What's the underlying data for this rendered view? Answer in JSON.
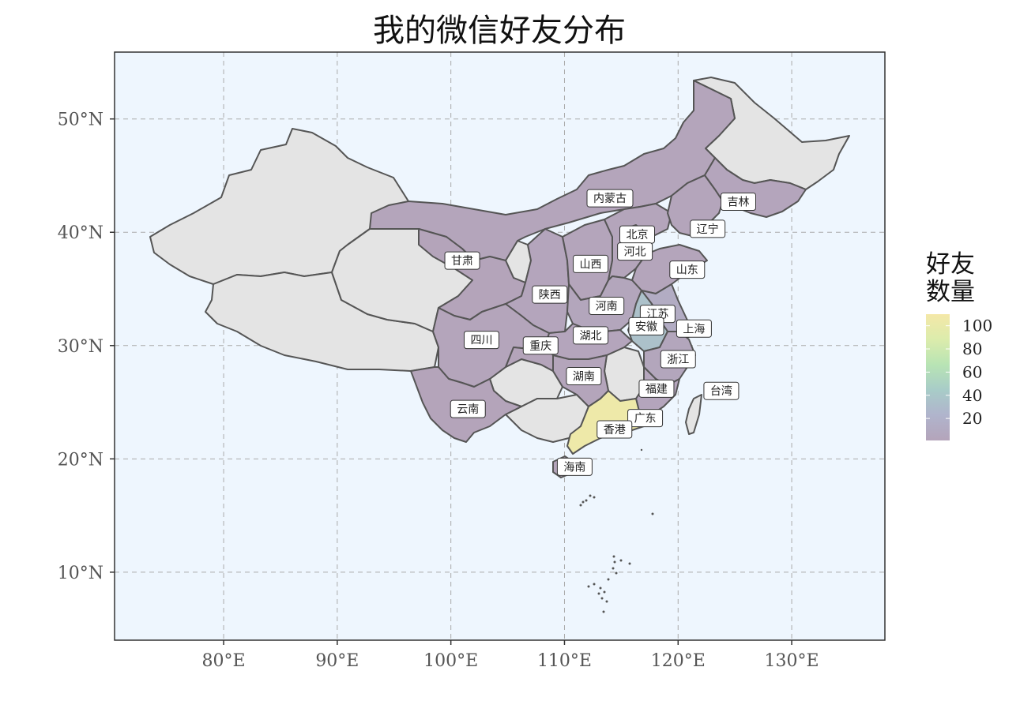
{
  "title": "我的微信好友分布",
  "map": {
    "x_axis": {
      "ticks": [
        80,
        90,
        100,
        110,
        120,
        130
      ],
      "labels": [
        "80°E",
        "90°E",
        "100°E",
        "110°E",
        "120°E",
        "130°E"
      ],
      "range": [
        70.4,
        138.2
      ]
    },
    "y_axis": {
      "ticks": [
        10,
        20,
        30,
        40,
        50
      ],
      "labels": [
        "10°N",
        "20°N",
        "30°N",
        "40°N",
        "50°N"
      ],
      "range": [
        4,
        55.9
      ]
    },
    "colors": {
      "panel_bg": "#eef6fe",
      "no_data": "#e4e4e4",
      "border": "#555555",
      "grid": "#aaaaaa"
    },
    "provinces": [
      {
        "name": "内蒙古",
        "lon": 114.0,
        "lat": 43.0,
        "count": 2
      },
      {
        "name": "吉林",
        "lon": 125.3,
        "lat": 42.7,
        "count": 3
      },
      {
        "name": "辽宁",
        "lon": 122.6,
        "lat": 40.3,
        "count": 2
      },
      {
        "name": "北京",
        "lon": 116.4,
        "lat": 39.8,
        "count": 3
      },
      {
        "name": "河北",
        "lon": 116.2,
        "lat": 38.3,
        "count": 2
      },
      {
        "name": "甘肃",
        "lon": 101.0,
        "lat": 37.5,
        "count": 1
      },
      {
        "name": "山西",
        "lon": 112.3,
        "lat": 37.2,
        "count": 2
      },
      {
        "name": "山东",
        "lon": 120.8,
        "lat": 36.7,
        "count": 2
      },
      {
        "name": "陕西",
        "lon": 108.7,
        "lat": 34.5,
        "count": 3
      },
      {
        "name": "河南",
        "lon": 113.7,
        "lat": 33.5,
        "count": 4
      },
      {
        "name": "江苏",
        "lon": 118.2,
        "lat": 32.8,
        "count": 12
      },
      {
        "name": "安徽",
        "lon": 117.2,
        "lat": 31.7,
        "count": 35
      },
      {
        "name": "上海",
        "lon": 121.4,
        "lat": 31.5,
        "count": 6
      },
      {
        "name": "湖北",
        "lon": 112.3,
        "lat": 30.9,
        "count": 3
      },
      {
        "name": "四川",
        "lon": 102.7,
        "lat": 30.5,
        "count": 2
      },
      {
        "name": "重庆",
        "lon": 107.9,
        "lat": 30.0,
        "count": 1
      },
      {
        "name": "浙江",
        "lon": 120.0,
        "lat": 28.8,
        "count": 4
      },
      {
        "name": "湖南",
        "lon": 111.7,
        "lat": 27.3,
        "count": 2
      },
      {
        "name": "福建",
        "lon": 118.1,
        "lat": 26.2,
        "count": 3
      },
      {
        "name": "台湾",
        "lon": 123.8,
        "lat": 26.0,
        "count": null
      },
      {
        "name": "云南",
        "lon": 101.5,
        "lat": 24.4,
        "count": 1
      },
      {
        "name": "广东",
        "lon": 117.1,
        "lat": 23.6,
        "count": 105
      },
      {
        "name": "香港",
        "lon": 114.4,
        "lat": 22.6,
        "count": 1
      },
      {
        "name": "海南",
        "lon": 110.9,
        "lat": 19.3,
        "count": 1
      }
    ]
  },
  "legend": {
    "title_line1": "好友",
    "title_line2": "数量",
    "ticks": [
      20,
      40,
      60,
      80,
      100
    ],
    "range": [
      1,
      110
    ],
    "colors": [
      "#b4a4ba",
      "#b0b4cc",
      "#a8ccc8",
      "#b8e4b4",
      "#dcecac",
      "#f4e8a8"
    ]
  }
}
